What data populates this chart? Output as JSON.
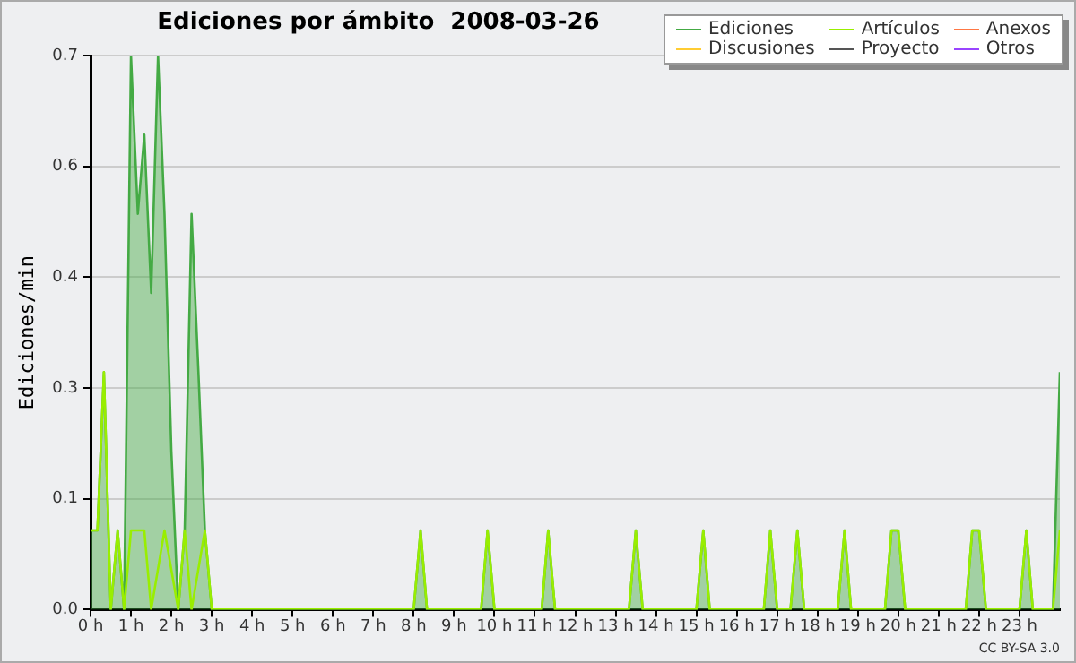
{
  "chart_data": {
    "type": "line",
    "title": "Ediciones por ámbito  2008-03-26",
    "ylabel": "Ediciones/min",
    "xlim": [
      0,
      24
    ],
    "xticks": [
      {
        "value": 0,
        "label": "0 h"
      },
      {
        "value": 1,
        "label": "1 h"
      },
      {
        "value": 2,
        "label": "2 h"
      },
      {
        "value": 3,
        "label": "3 h"
      },
      {
        "value": 4,
        "label": "4 h"
      },
      {
        "value": 5,
        "label": "5 h"
      },
      {
        "value": 6,
        "label": "6 h"
      },
      {
        "value": 7,
        "label": "7 h"
      },
      {
        "value": 8,
        "label": "8 h"
      },
      {
        "value": 9,
        "label": "9 h"
      },
      {
        "value": 10,
        "label": "10 h"
      },
      {
        "value": 11,
        "label": "11 h"
      },
      {
        "value": 12,
        "label": "12 h"
      },
      {
        "value": 13,
        "label": "13 h"
      },
      {
        "value": 14,
        "label": "14 h"
      },
      {
        "value": 15,
        "label": "15 h"
      },
      {
        "value": 16,
        "label": "16 h"
      },
      {
        "value": 17,
        "label": "17 h"
      },
      {
        "value": 18,
        "label": "18 h"
      },
      {
        "value": 19,
        "label": "19 h"
      },
      {
        "value": 20,
        "label": "20 h"
      },
      {
        "value": 21,
        "label": "21 h"
      },
      {
        "value": 22,
        "label": "22 h"
      },
      {
        "value": 23,
        "label": "23 h"
      }
    ],
    "ylim": [
      0,
      0.7
    ],
    "yticks": [
      {
        "value": 0,
        "label": "0.0"
      },
      {
        "value": 0.14,
        "label": "0.1"
      },
      {
        "value": 0.28,
        "label": "0.3"
      },
      {
        "value": 0.42,
        "label": "0.4"
      },
      {
        "value": 0.56,
        "label": "0.6"
      },
      {
        "value": 0.7,
        "label": "0.7"
      }
    ],
    "grid": "y",
    "legend": "top right",
    "marker": "none",
    "line_style": "solid",
    "annotations": [
      "CC BY-SA 3.0"
    ],
    "series": [
      {
        "name": "Ediciones",
        "type": "area",
        "color": "#44aa44",
        "x": [
          0,
          0.17,
          0.33,
          0.5,
          0.67,
          0.83,
          1,
          1.17,
          1.33,
          1.5,
          1.67,
          1.83,
          2,
          2.17,
          2.33,
          2.5,
          2.67,
          2.83,
          3,
          8,
          8.17,
          8.33,
          9.67,
          9.83,
          10,
          11.17,
          11.33,
          11.5,
          13.33,
          13.5,
          13.67,
          15,
          15.17,
          15.33,
          16.67,
          16.83,
          17,
          17.33,
          17.5,
          17.67,
          18.5,
          18.67,
          18.83,
          19.67,
          19.83,
          20,
          20.17,
          21.67,
          21.83,
          22,
          22.17,
          23,
          23.17,
          23.33,
          23.83,
          24
        ],
        "values": [
          0.1,
          0.1,
          0.3,
          0,
          0.1,
          0,
          0.7,
          0.5,
          0.6,
          0.4,
          0.7,
          0.5,
          0.2,
          0,
          0.1,
          0.5,
          0.3,
          0.1,
          0,
          0,
          0.1,
          0,
          0,
          0.1,
          0,
          0,
          0.1,
          0,
          0,
          0.1,
          0,
          0,
          0.1,
          0,
          0,
          0.1,
          0,
          0,
          0.1,
          0,
          0,
          0.1,
          0,
          0,
          0.1,
          0.1,
          0,
          0,
          0.1,
          0.1,
          0,
          0,
          0.1,
          0,
          0,
          0.3
        ]
      },
      {
        "name": "Artículos",
        "color": "#99ee00",
        "x": [
          0,
          0.17,
          0.33,
          0.5,
          0.67,
          0.83,
          1,
          1.17,
          1.33,
          1.5,
          1.83,
          2.17,
          2.33,
          2.5,
          2.83,
          3,
          8,
          8.17,
          8.33,
          9.67,
          9.83,
          10,
          11.17,
          11.33,
          11.5,
          13.33,
          13.5,
          13.67,
          15,
          15.17,
          15.33,
          16.67,
          16.83,
          17,
          17.33,
          17.5,
          17.67,
          18.5,
          18.67,
          18.83,
          19.67,
          19.83,
          20,
          20.17,
          21.67,
          21.83,
          22,
          22.17,
          23,
          23.17,
          23.33,
          23.83,
          24
        ],
        "values": [
          0.1,
          0.1,
          0.3,
          0,
          0.1,
          0,
          0.1,
          0.1,
          0.1,
          0,
          0.1,
          0,
          0.1,
          0,
          0.1,
          0,
          0,
          0.1,
          0,
          0,
          0.1,
          0,
          0,
          0.1,
          0,
          0,
          0.1,
          0,
          0,
          0.1,
          0,
          0,
          0.1,
          0,
          0,
          0.1,
          0,
          0,
          0.1,
          0,
          0,
          0.1,
          0.1,
          0,
          0,
          0.1,
          0.1,
          0,
          0,
          0.1,
          0,
          0,
          0.1
        ]
      },
      {
        "name": "Anexos",
        "color": "#ff7744"
      },
      {
        "name": "Discusiones",
        "color": "#ffcc33"
      },
      {
        "name": "Proyecto",
        "color": "#555555"
      },
      {
        "name": "Otros",
        "color": "#9944ff"
      }
    ]
  }
}
